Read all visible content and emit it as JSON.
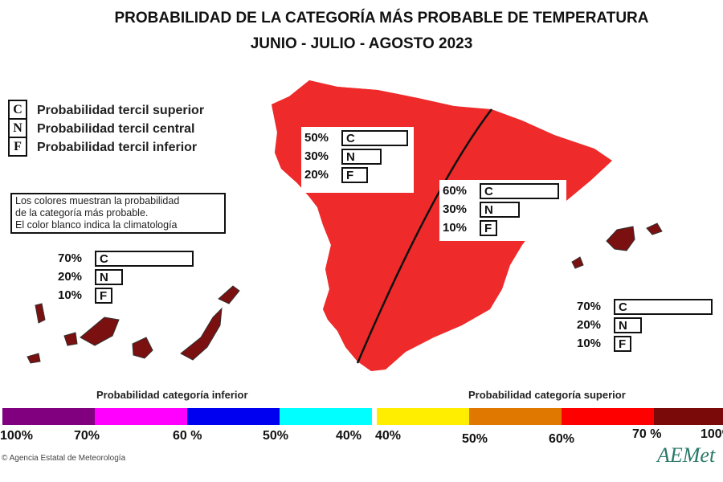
{
  "title": {
    "line1": "PROBABILIDAD DE LA CATEGORÍA MÁS PROBABLE DE TEMPERATURA",
    "line2": "JUNIO - JULIO - AGOSTO 2023"
  },
  "key": [
    {
      "letter": "C",
      "label": "Probabilidad  tercil superior"
    },
    {
      "letter": "N",
      "label": "Probabilidad  tercil central"
    },
    {
      "letter": "F",
      "label": "Probabilidad  tercil inferior"
    }
  ],
  "note": [
    "Los colores muestran la probabilidad",
    "de la categoría más probable.",
    "El color blanco indica la climatología"
  ],
  "regions": [
    {
      "name": "west",
      "color": "#e07800",
      "bars": [
        {
          "label": "50%",
          "letter": "C",
          "value": 50
        },
        {
          "label": "30%",
          "letter": "N",
          "value": 30
        },
        {
          "label": "20%",
          "letter": "F",
          "value": 20
        }
      ]
    },
    {
      "name": "east",
      "color": "#ee2a2a",
      "bars": [
        {
          "label": "60%",
          "letter": "C",
          "value": 60
        },
        {
          "label": "30%",
          "letter": "N",
          "value": 30
        },
        {
          "label": "10%",
          "letter": "F",
          "value": 10
        }
      ]
    },
    {
      "name": "canarias",
      "color": "#7a1010",
      "bars": [
        {
          "label": "70%",
          "letter": "C",
          "value": 70
        },
        {
          "label": "20%",
          "letter": "N",
          "value": 20
        },
        {
          "label": "10%",
          "letter": "F",
          "value": 10
        }
      ]
    },
    {
      "name": "baleares",
      "color": "#7a1010",
      "bars": [
        {
          "label": "70%",
          "letter": "C",
          "value": 70
        },
        {
          "label": "20%",
          "letter": "N",
          "value": 20
        },
        {
          "label": "10%",
          "letter": "F",
          "value": 10
        }
      ]
    }
  ],
  "colorbar": {
    "inferior_caption": "Probabilidad categoría inferior",
    "superior_caption": "Probabilidad categoría superior",
    "inferior_colors": [
      "#800080",
      "#ff00ff",
      "#0000f0",
      "#00ffff"
    ],
    "superior_colors": [
      "#ffee00",
      "#e07800",
      "#ff0000",
      "#7a0a0a"
    ],
    "inferior_ticks": [
      "100%",
      "70%",
      "60 %",
      "50%",
      "40%"
    ],
    "superior_ticks": [
      "40%",
      "50%",
      "60%",
      "70 %",
      "100%"
    ]
  },
  "footer": {
    "copyright": "© Agencia Estatal de Meteorología",
    "logo": "AEMet"
  }
}
